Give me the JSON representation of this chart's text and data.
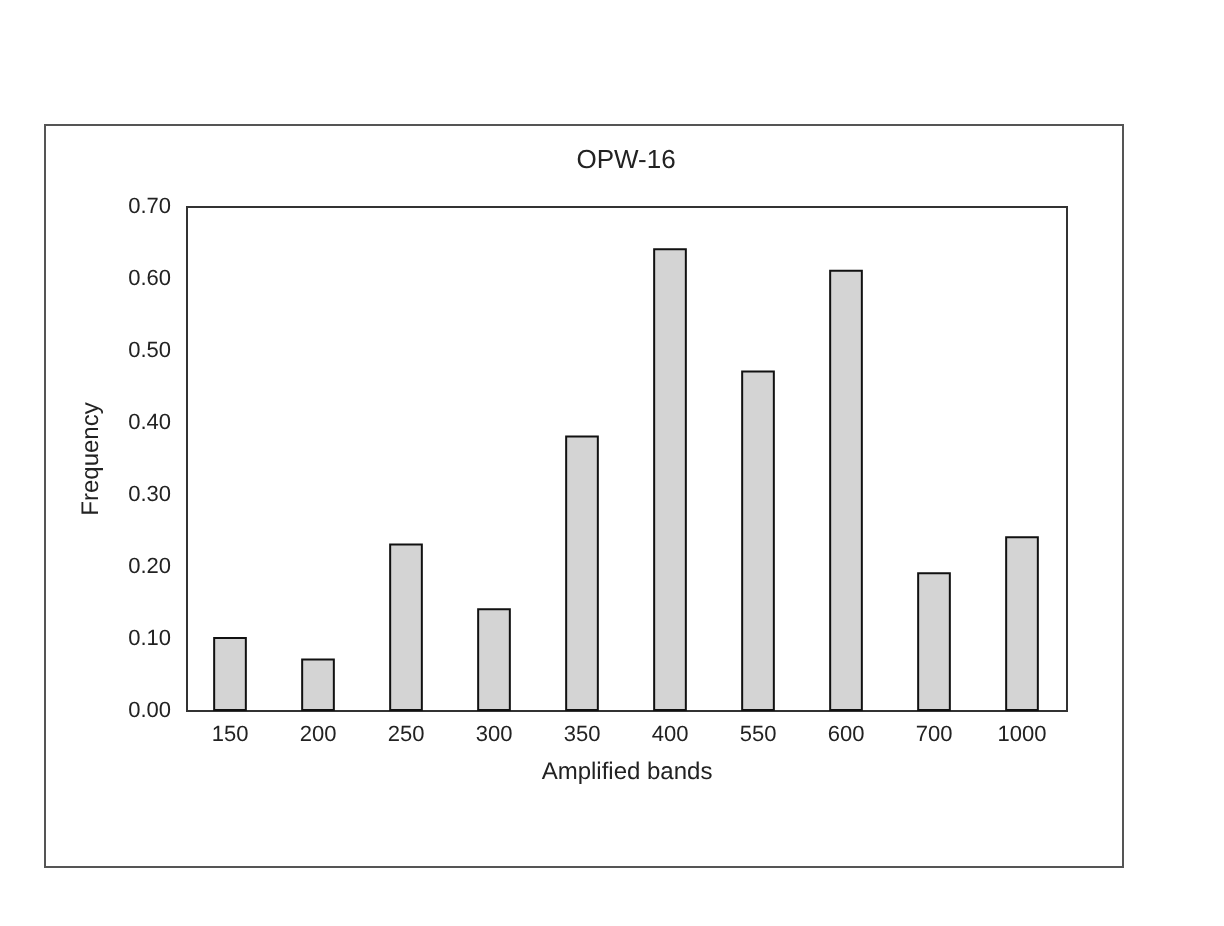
{
  "chart_data": {
    "type": "bar",
    "title": "OPW-16",
    "xlabel": "Amplified bands",
    "ylabel": "Frequency",
    "categories": [
      "150",
      "200",
      "250",
      "300",
      "350",
      "400",
      "550",
      "600",
      "700",
      "1000"
    ],
    "values": [
      0.1,
      0.07,
      0.23,
      0.14,
      0.38,
      0.64,
      0.47,
      0.61,
      0.19,
      0.24
    ],
    "color": "#d4d4d4",
    "ylim": [
      0,
      0.7
    ],
    "yticks": [
      {
        "value": 0,
        "label": "0.00"
      },
      {
        "value": 0.1,
        "label": "0.10"
      },
      {
        "value": 0.2,
        "label": "0.20"
      },
      {
        "value": 0.3,
        "label": "0.30"
      },
      {
        "value": 0.4,
        "label": "0.40"
      },
      {
        "value": 0.5,
        "label": "0.50"
      },
      {
        "value": 0.6,
        "label": "0.60"
      },
      {
        "value": 0.7,
        "label": "0.70"
      }
    ],
    "grid": false
  }
}
